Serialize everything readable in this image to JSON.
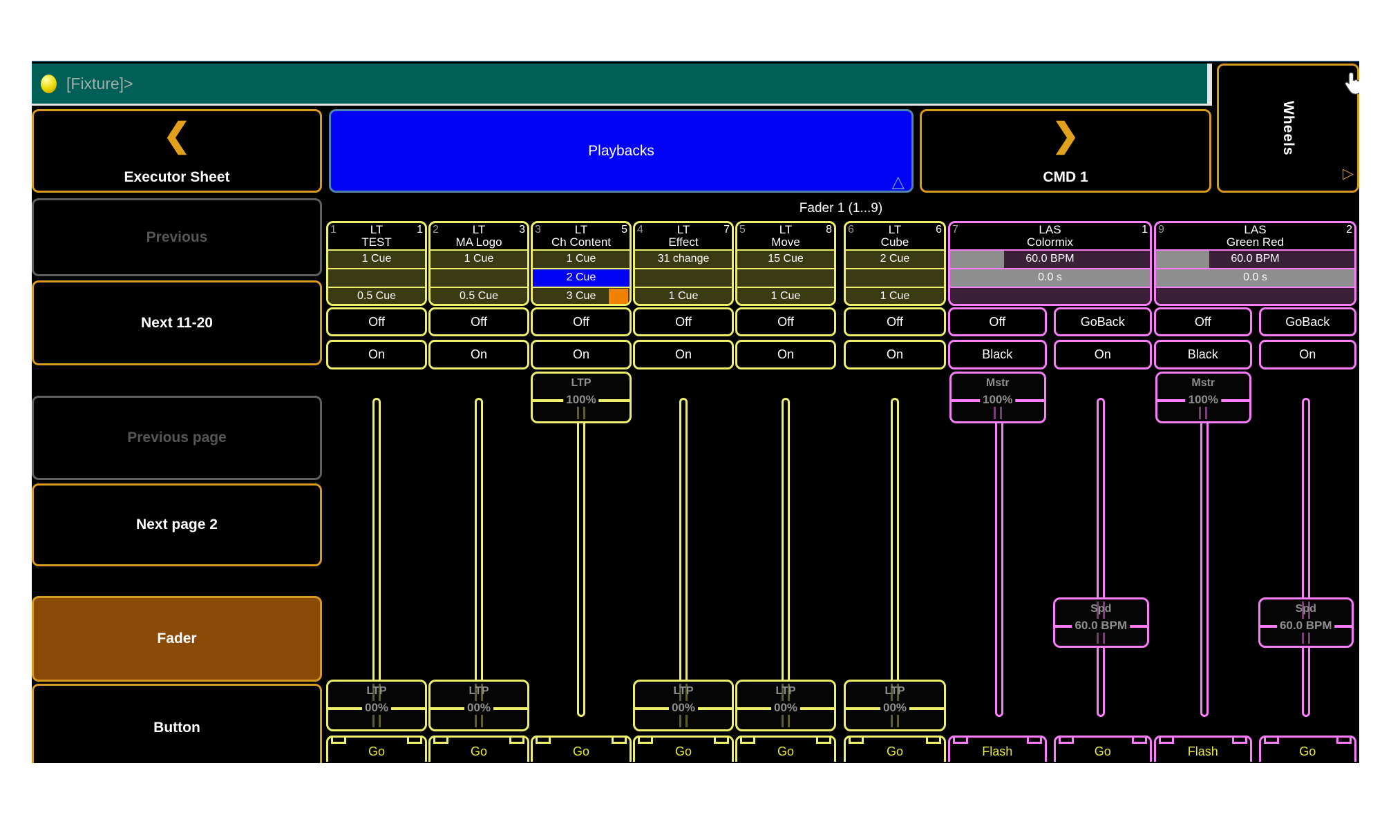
{
  "command_bar": {
    "prompt": "[Fixture]>"
  },
  "nav": {
    "prev_view": "Executor Sheet",
    "current_view": "Playbacks",
    "next_view": "CMD 1",
    "side_panel": "Wheels"
  },
  "sidebar": {
    "items": [
      {
        "label": "Previous",
        "state": "disabled"
      },
      {
        "label": "Next 11-20",
        "state": "enabled"
      },
      {
        "label": "Previous page",
        "state": "disabled"
      },
      {
        "label": "Next page 2",
        "state": "enabled"
      },
      {
        "label": "Fader",
        "state": "active"
      },
      {
        "label": "Button",
        "state": "enabled"
      }
    ]
  },
  "section_title": "Fader 1 (1...9)",
  "strips": [
    {
      "exec": "1",
      "seq": "1",
      "name": [
        "LT",
        "TEST"
      ],
      "accent": "yellow",
      "cues": [
        {
          "text": "1 Cue"
        },
        {
          "text": ""
        },
        {
          "text": "0.5 Cue"
        }
      ],
      "top_buttons": [
        "Off"
      ],
      "bottom_buttons": [
        "On"
      ],
      "faders": [
        {
          "label": "LTP",
          "value": "00%",
          "position": "bottom"
        }
      ],
      "go_buttons": [
        "Go"
      ]
    },
    {
      "exec": "2",
      "seq": "3",
      "name": [
        "LT",
        "MA Logo"
      ],
      "accent": "yellow",
      "cues": [
        {
          "text": "1 Cue"
        },
        {
          "text": ""
        },
        {
          "text": "0.5 Cue"
        }
      ],
      "top_buttons": [
        "Off"
      ],
      "bottom_buttons": [
        "On"
      ],
      "faders": [
        {
          "label": "LTP",
          "value": "00%",
          "position": "bottom"
        }
      ],
      "go_buttons": [
        "Go"
      ]
    },
    {
      "exec": "3",
      "seq": "5",
      "name": [
        "LT",
        "Ch Content"
      ],
      "accent": "yellow",
      "cues": [
        {
          "text": "1 Cue"
        },
        {
          "text": "2 Cue",
          "highlight": "blue"
        },
        {
          "text": "3 Cue",
          "marker": "orange"
        }
      ],
      "top_buttons": [
        "Off"
      ],
      "bottom_buttons": [
        "On"
      ],
      "faders": [
        {
          "label": "LTP",
          "value": "100%",
          "position": "top"
        }
      ],
      "go_buttons": [
        "Go"
      ]
    },
    {
      "exec": "4",
      "seq": "7",
      "name": [
        "LT",
        "Effect"
      ],
      "accent": "yellow",
      "cues": [
        {
          "text": "31 change"
        },
        {
          "text": ""
        },
        {
          "text": "1 Cue"
        }
      ],
      "top_buttons": [
        "Off"
      ],
      "bottom_buttons": [
        "On"
      ],
      "faders": [
        {
          "label": "LTP",
          "value": "00%",
          "position": "bottom"
        }
      ],
      "go_buttons": [
        "Go"
      ]
    },
    {
      "exec": "5",
      "seq": "8",
      "name": [
        "LT",
        "Move"
      ],
      "accent": "yellow",
      "cues": [
        {
          "text": "15 Cue"
        },
        {
          "text": ""
        },
        {
          "text": "1 Cue"
        }
      ],
      "top_buttons": [
        "Off"
      ],
      "bottom_buttons": [
        "On"
      ],
      "faders": [
        {
          "label": "LTP",
          "value": "00%",
          "position": "bottom"
        }
      ],
      "go_buttons": [
        "Go"
      ]
    },
    {
      "exec": "6",
      "seq": "6",
      "name": [
        "LT",
        "Cube"
      ],
      "accent": "yellow",
      "cues": [
        {
          "text": "2 Cue"
        },
        {
          "text": ""
        },
        {
          "text": "1 Cue"
        }
      ],
      "top_buttons": [
        "Off"
      ],
      "bottom_buttons": [
        "On"
      ],
      "faders": [
        {
          "label": "LTP",
          "value": "00%",
          "position": "bottom"
        }
      ],
      "go_buttons": [
        "Go"
      ]
    },
    {
      "exec": "7",
      "seq": "1",
      "name": [
        "LAS",
        "Colormix"
      ],
      "accent": "magenta",
      "cues": [
        {
          "text": "60.0 BPM",
          "fill": "gray-partial"
        },
        {
          "text": "0.0 s",
          "fill": "gray-full"
        },
        {
          "text": ""
        }
      ],
      "top_buttons": [
        "Off",
        "GoBack"
      ],
      "bottom_buttons": [
        "Black",
        "On"
      ],
      "faders": [
        {
          "label": "Mstr",
          "value": "100%",
          "position": "top"
        },
        {
          "label": "Spd",
          "value": "60.0 BPM",
          "position": "middle"
        }
      ],
      "go_buttons": [
        "Flash",
        "Go"
      ]
    },
    {
      "exec": "9",
      "seq": "2",
      "name": [
        "LAS",
        "Green Red"
      ],
      "accent": "magenta",
      "cues": [
        {
          "text": "60.0 BPM",
          "fill": "gray-partial"
        },
        {
          "text": "0.0 s",
          "fill": "gray-full"
        },
        {
          "text": ""
        }
      ],
      "top_buttons": [
        "Off",
        "GoBack"
      ],
      "bottom_buttons": [
        "Black",
        "On"
      ],
      "faders": [
        {
          "label": "Mstr",
          "value": "100%",
          "position": "top"
        },
        {
          "label": "Spd",
          "value": "60.0 BPM",
          "position": "middle"
        }
      ],
      "go_buttons": [
        "Flash",
        "Go"
      ]
    }
  ],
  "colors": {
    "command_bar_bg": "#015f58",
    "accent_yellow": "#efef6e",
    "accent_magenta": "#fa7dfa",
    "nav_orange": "#d79a1f",
    "playbacks_blue": "#0202f5",
    "cue_row_olive": "#3a3a15",
    "cue_active_blue": "#0202f5",
    "cue_marker_orange": "#ef8200",
    "las_row_purple": "#3a2138",
    "las_row_gray": "#8e8e8e",
    "fader_active_bg": "#8a4a08",
    "go_text_yellow": "#e8e838"
  }
}
